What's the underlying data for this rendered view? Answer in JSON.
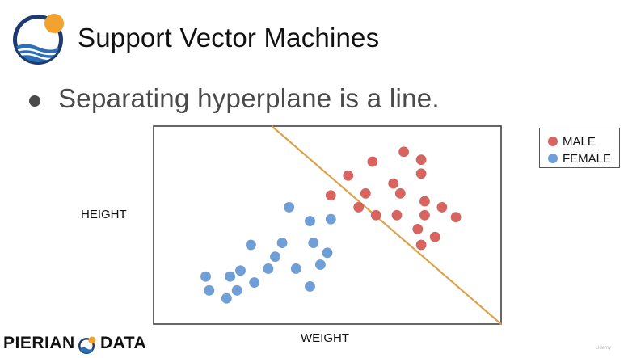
{
  "slide": {
    "title": "Support Vector Machines",
    "bullet": "Separating hyperplane is a line.",
    "brand_left": "PIERIAN",
    "brand_right": "DATA",
    "watermark": "Udemy"
  },
  "icons": {
    "logo": "sun-waves-logo-icon",
    "brand": "sun-waves-small-icon"
  },
  "colors": {
    "male": "#d9645f",
    "female": "#6e9fd8",
    "separator": "#dba24a",
    "logo_navy": "#1e3a6e",
    "logo_sun": "#f2a22f"
  },
  "chart_data": {
    "type": "scatter",
    "xlabel": "WEIGHT",
    "ylabel": "HEIGHT",
    "xlim": [
      0,
      100
    ],
    "ylim": [
      0,
      100
    ],
    "ticks": false,
    "grid": false,
    "legend_position": "top-right-outside",
    "series": [
      {
        "name": "MALE",
        "color": "#d9645f",
        "points": [
          [
            72,
            87
          ],
          [
            77,
            83
          ],
          [
            63,
            82
          ],
          [
            77,
            76
          ],
          [
            56,
            75
          ],
          [
            69,
            71
          ],
          [
            61,
            66
          ],
          [
            71,
            66
          ],
          [
            51,
            65
          ],
          [
            78,
            62
          ],
          [
            59,
            59
          ],
          [
            64,
            55
          ],
          [
            70,
            55
          ],
          [
            78,
            55
          ],
          [
            83,
            59
          ],
          [
            87,
            54
          ],
          [
            76,
            48
          ],
          [
            81,
            44
          ],
          [
            77,
            40
          ]
        ]
      },
      {
        "name": "FEMALE",
        "color": "#6e9fd8",
        "points": [
          [
            39,
            59
          ],
          [
            45,
            52
          ],
          [
            51,
            53
          ],
          [
            28,
            40
          ],
          [
            37,
            41
          ],
          [
            46,
            41
          ],
          [
            35,
            34
          ],
          [
            50,
            36
          ],
          [
            48,
            30
          ],
          [
            25,
            27
          ],
          [
            33,
            28
          ],
          [
            41,
            28
          ],
          [
            29,
            21
          ],
          [
            15,
            24
          ],
          [
            22,
            24
          ],
          [
            45,
            19
          ],
          [
            16,
            17
          ],
          [
            24,
            17
          ],
          [
            21,
            13
          ]
        ]
      }
    ],
    "separator_line": {
      "from": [
        34,
        100
      ],
      "to": [
        100,
        0
      ]
    }
  }
}
